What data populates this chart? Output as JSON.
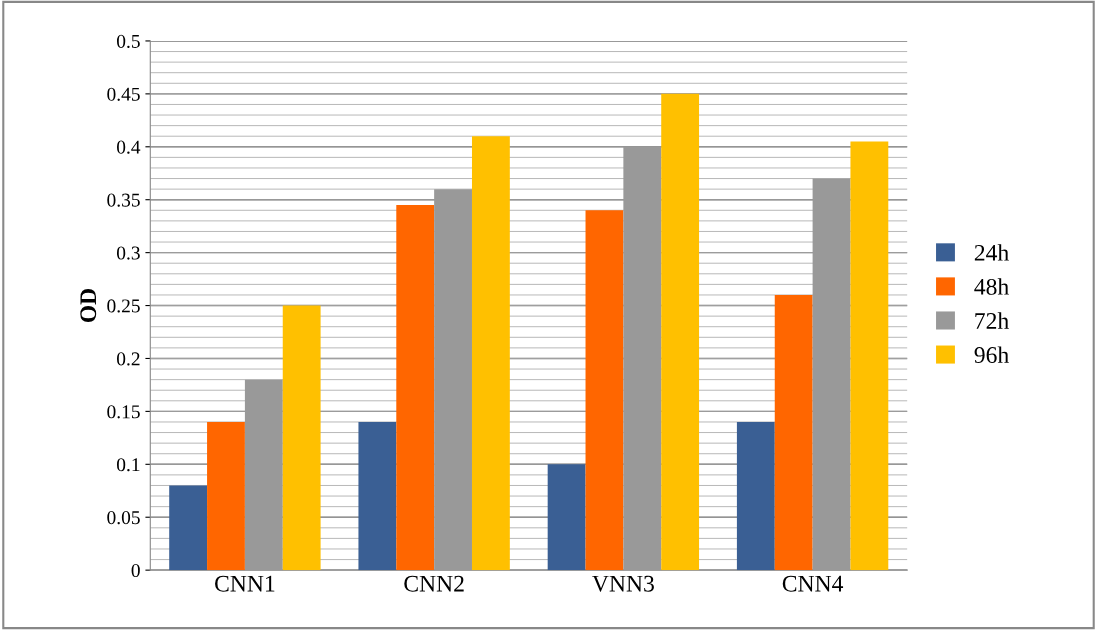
{
  "chart_data": {
    "type": "bar",
    "ylabel": "OD",
    "categories": [
      "CNN1",
      "CNN2",
      "VNN3",
      "CNN4"
    ],
    "series": [
      {
        "name": "24h",
        "color": "#3a5f94",
        "values": [
          0.08,
          0.14,
          0.1,
          0.14
        ]
      },
      {
        "name": "48h",
        "color": "#ff6600",
        "values": [
          0.14,
          0.345,
          0.34,
          0.26
        ]
      },
      {
        "name": "72h",
        "color": "#999999",
        "values": [
          0.18,
          0.36,
          0.4,
          0.37
        ]
      },
      {
        "name": "96h",
        "color": "#ffc000",
        "values": [
          0.25,
          0.41,
          0.45,
          0.405
        ]
      }
    ],
    "ylim": [
      0,
      0.5
    ],
    "yticks": [
      0,
      0.05,
      0.1,
      0.15,
      0.2,
      0.25,
      0.3,
      0.35,
      0.4,
      0.45,
      0.5
    ],
    "grid": "y",
    "legend": "right"
  }
}
